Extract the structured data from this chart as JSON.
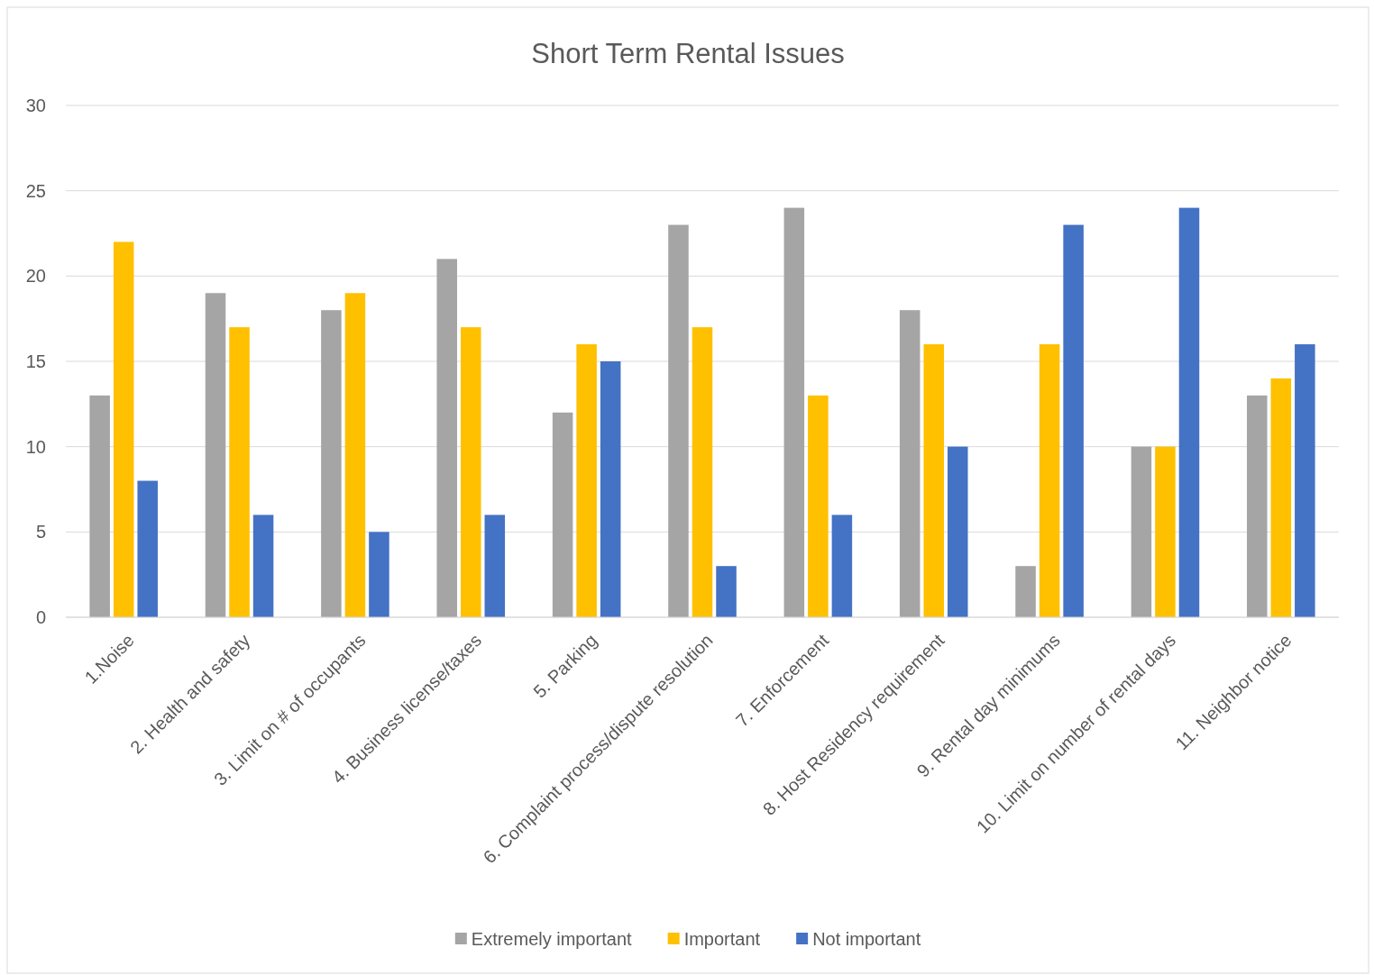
{
  "chart_data": {
    "type": "bar",
    "title": "Short Term Rental Issues",
    "categories": [
      "1.Noise",
      "2. Health and safety",
      "3. Limit on # of occupants",
      "4. Business license/taxes",
      "5. Parking",
      "6. Complaint process/dispute resolution",
      "7. Enforcement",
      "8. Host Residency requirement",
      "9. Rental day minimums",
      "10. Limit on number of rental days",
      "11. Neighbor notice"
    ],
    "series": [
      {
        "name": "Extremely important",
        "color": "#a5a5a5",
        "values": [
          13,
          19,
          18,
          21,
          12,
          23,
          24,
          18,
          3,
          10,
          13
        ]
      },
      {
        "name": "Important",
        "color": "#ffc000",
        "values": [
          22,
          17,
          19,
          17,
          16,
          17,
          13,
          16,
          16,
          10,
          14
        ]
      },
      {
        "name": "Not important",
        "color": "#4472c4",
        "values": [
          8,
          6,
          5,
          6,
          15,
          3,
          6,
          10,
          23,
          24,
          16
        ]
      }
    ],
    "ylim": [
      0,
      30
    ],
    "yticks": [
      0,
      5,
      10,
      15,
      20,
      25,
      30
    ],
    "grid": "y",
    "legend": "bottom"
  }
}
